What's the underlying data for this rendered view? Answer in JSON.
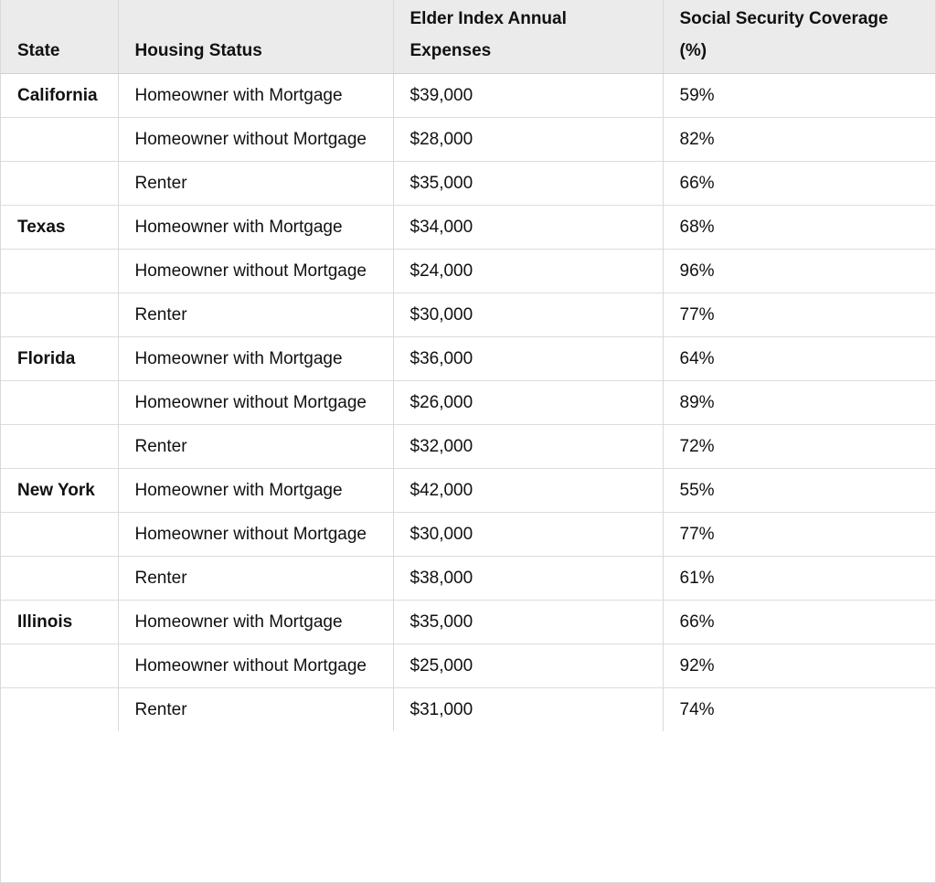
{
  "table": {
    "headers": [
      "State",
      "Housing Status",
      "Elder Index Annual Expenses",
      "Social Security Coverage (%)"
    ],
    "rows": [
      {
        "state": "California",
        "housing": "Homeowner with Mortgage",
        "expenses": "$39,000",
        "coverage": "59%"
      },
      {
        "state": "",
        "housing": "Homeowner without Mortgage",
        "expenses": "$28,000",
        "coverage": "82%"
      },
      {
        "state": "",
        "housing": "Renter",
        "expenses": "$35,000",
        "coverage": "66%"
      },
      {
        "state": "Texas",
        "housing": "Homeowner with Mortgage",
        "expenses": "$34,000",
        "coverage": "68%"
      },
      {
        "state": "",
        "housing": "Homeowner without Mortgage",
        "expenses": "$24,000",
        "coverage": "96%"
      },
      {
        "state": "",
        "housing": "Renter",
        "expenses": "$30,000",
        "coverage": "77%"
      },
      {
        "state": "Florida",
        "housing": "Homeowner with Mortgage",
        "expenses": "$36,000",
        "coverage": "64%"
      },
      {
        "state": "",
        "housing": "Homeowner without Mortgage",
        "expenses": "$26,000",
        "coverage": "89%"
      },
      {
        "state": "",
        "housing": "Renter",
        "expenses": "$32,000",
        "coverage": "72%"
      },
      {
        "state": "New York",
        "housing": "Homeowner with Mortgage",
        "expenses": "$42,000",
        "coverage": "55%"
      },
      {
        "state": "",
        "housing": "Homeowner without Mortgage",
        "expenses": "$30,000",
        "coverage": "77%"
      },
      {
        "state": "",
        "housing": "Renter",
        "expenses": "$38,000",
        "coverage": "61%"
      },
      {
        "state": "Illinois",
        "housing": "Homeowner with Mortgage",
        "expenses": "$35,000",
        "coverage": "66%"
      },
      {
        "state": "",
        "housing": "Homeowner without Mortgage",
        "expenses": "$25,000",
        "coverage": "92%"
      },
      {
        "state": "",
        "housing": "Renter",
        "expenses": "$31,000",
        "coverage": "74%"
      }
    ]
  }
}
